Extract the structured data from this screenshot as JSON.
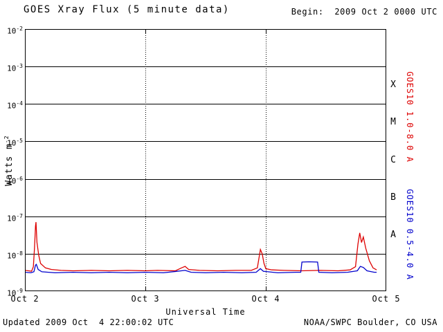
{
  "header": {
    "title": "GOES Xray Flux (5 minute data)",
    "begin_label": "Begin:  2009 Oct 2 0000 UTC"
  },
  "footer": {
    "updated": "Updated 2009 Oct  4 22:00:02 UTC",
    "source": "NOAA/SWPC Boulder, CO USA"
  },
  "colors": {
    "background": "#ffffff",
    "axis": "#000000",
    "red_series": "#dd0000",
    "blue_series": "#0000cc"
  },
  "chart_data": {
    "type": "line",
    "title": "GOES Xray Flux (5 minute data)",
    "xlabel": "Universal Time",
    "ylabel": "Watts m-2",
    "ylabel_base": "Watts m",
    "ylabel_exp": "-2",
    "x_ticks": [
      "Oct 2",
      "Oct 3",
      "Oct 4",
      "Oct 5"
    ],
    "x_range_days": [
      0,
      3
    ],
    "y_log_range": [
      -9,
      -2
    ],
    "y_tick_exponents": [
      -2,
      -3,
      -4,
      -5,
      -6,
      -7,
      -8,
      -9
    ],
    "grid": {
      "h_lines": "solid",
      "v_lines": "dotted",
      "legend_position": "right-rotated"
    },
    "flare_class_labels": [
      {
        "label": "X",
        "exponent_mid": -3.5
      },
      {
        "label": "M",
        "exponent_mid": -4.5
      },
      {
        "label": "C",
        "exponent_mid": -5.5
      },
      {
        "label": "B",
        "exponent_mid": -6.5
      },
      {
        "label": "A",
        "exponent_mid": -7.5
      }
    ],
    "series": [
      {
        "name": "GOES10 1.0-8.0 A",
        "color": "#dd0000",
        "points": [
          [
            0.0,
            3.6e-09
          ],
          [
            0.03,
            3.5e-09
          ],
          [
            0.055,
            3.4e-09
          ],
          [
            0.07,
            4.5e-09
          ],
          [
            0.08,
            1.5e-08
          ],
          [
            0.088,
            5.5e-08
          ],
          [
            0.092,
            7e-08
          ],
          [
            0.1,
            2e-08
          ],
          [
            0.115,
            9e-09
          ],
          [
            0.13,
            5.5e-09
          ],
          [
            0.17,
            4.2e-09
          ],
          [
            0.22,
            3.8e-09
          ],
          [
            0.3,
            3.6e-09
          ],
          [
            0.4,
            3.5e-09
          ],
          [
            0.55,
            3.6e-09
          ],
          [
            0.7,
            3.5e-09
          ],
          [
            0.85,
            3.6e-09
          ],
          [
            1.0,
            3.5e-09
          ],
          [
            1.1,
            3.6e-09
          ],
          [
            1.25,
            3.5e-09
          ],
          [
            1.3,
            4.2e-09
          ],
          [
            1.33,
            4.6e-09
          ],
          [
            1.36,
            3.8e-09
          ],
          [
            1.45,
            3.6e-09
          ],
          [
            1.6,
            3.5e-09
          ],
          [
            1.75,
            3.6e-09
          ],
          [
            1.88,
            3.6e-09
          ],
          [
            1.93,
            4.2e-09
          ],
          [
            1.955,
            1.3e-08
          ],
          [
            1.97,
            1e-08
          ],
          [
            1.985,
            5.5e-09
          ],
          [
            2.0,
            4e-09
          ],
          [
            2.05,
            3.7e-09
          ],
          [
            2.15,
            3.6e-09
          ],
          [
            2.3,
            3.5e-09
          ],
          [
            2.45,
            3.6e-09
          ],
          [
            2.6,
            3.5e-09
          ],
          [
            2.7,
            3.7e-09
          ],
          [
            2.745,
            4.5e-09
          ],
          [
            2.765,
            1.8e-08
          ],
          [
            2.78,
            3.6e-08
          ],
          [
            2.795,
            2e-08
          ],
          [
            2.81,
            2.8e-08
          ],
          [
            2.83,
            1.4e-08
          ],
          [
            2.86,
            6.5e-09
          ],
          [
            2.89,
            4.2e-09
          ],
          [
            2.92,
            3.7e-09
          ]
        ]
      },
      {
        "name": "GOES10 0.5-4.0 A",
        "color": "#0000cc",
        "points": [
          [
            0.0,
            3.2e-09
          ],
          [
            0.05,
            3.1e-09
          ],
          [
            0.075,
            3.3e-09
          ],
          [
            0.088,
            5e-09
          ],
          [
            0.095,
            5.2e-09
          ],
          [
            0.11,
            3.8e-09
          ],
          [
            0.14,
            3.3e-09
          ],
          [
            0.25,
            3.1e-09
          ],
          [
            0.4,
            3.2e-09
          ],
          [
            0.55,
            3.1e-09
          ],
          [
            0.7,
            3.2e-09
          ],
          [
            0.85,
            3.1e-09
          ],
          [
            1.0,
            3.2e-09
          ],
          [
            1.15,
            3.1e-09
          ],
          [
            1.3,
            3.5e-09
          ],
          [
            1.33,
            3.6e-09
          ],
          [
            1.38,
            3.2e-09
          ],
          [
            1.5,
            3.1e-09
          ],
          [
            1.65,
            3.2e-09
          ],
          [
            1.8,
            3.1e-09
          ],
          [
            1.92,
            3.2e-09
          ],
          [
            1.955,
            4e-09
          ],
          [
            1.98,
            3.4e-09
          ],
          [
            2.1,
            3.1e-09
          ],
          [
            2.25,
            3.2e-09
          ],
          [
            2.29,
            3.2e-09
          ],
          [
            2.3,
            6e-09
          ],
          [
            2.36,
            6.1e-09
          ],
          [
            2.43,
            6e-09
          ],
          [
            2.44,
            3.2e-09
          ],
          [
            2.55,
            3.1e-09
          ],
          [
            2.68,
            3.2e-09
          ],
          [
            2.76,
            3.5e-09
          ],
          [
            2.785,
            4.6e-09
          ],
          [
            2.81,
            4.3e-09
          ],
          [
            2.84,
            3.5e-09
          ],
          [
            2.9,
            3.2e-09
          ],
          [
            2.92,
            3.2e-09
          ]
        ]
      }
    ]
  }
}
